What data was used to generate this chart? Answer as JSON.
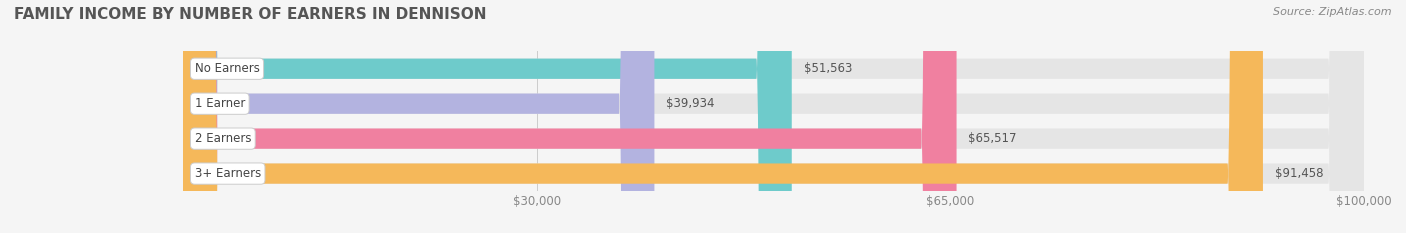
{
  "title": "FAMILY INCOME BY NUMBER OF EARNERS IN DENNISON",
  "source": "Source: ZipAtlas.com",
  "categories": [
    "No Earners",
    "1 Earner",
    "2 Earners",
    "3+ Earners"
  ],
  "values": [
    51563,
    39934,
    65517,
    91458
  ],
  "bar_colors": [
    "#6ecbcb",
    "#b3b3e0",
    "#f080a0",
    "#f5b85a"
  ],
  "background_color": "#f5f5f5",
  "bar_bg_color": "#e5e5e5",
  "xlim_min": 0,
  "xlim_max": 100000,
  "xticks": [
    30000,
    65000,
    100000
  ],
  "xtick_labels": [
    "$30,000",
    "$65,000",
    "$100,000"
  ],
  "title_fontsize": 11,
  "source_fontsize": 8,
  "bar_label_fontsize": 8.5,
  "value_fontsize": 8.5,
  "bar_height": 0.58,
  "fig_width": 14.06,
  "fig_height": 2.33
}
